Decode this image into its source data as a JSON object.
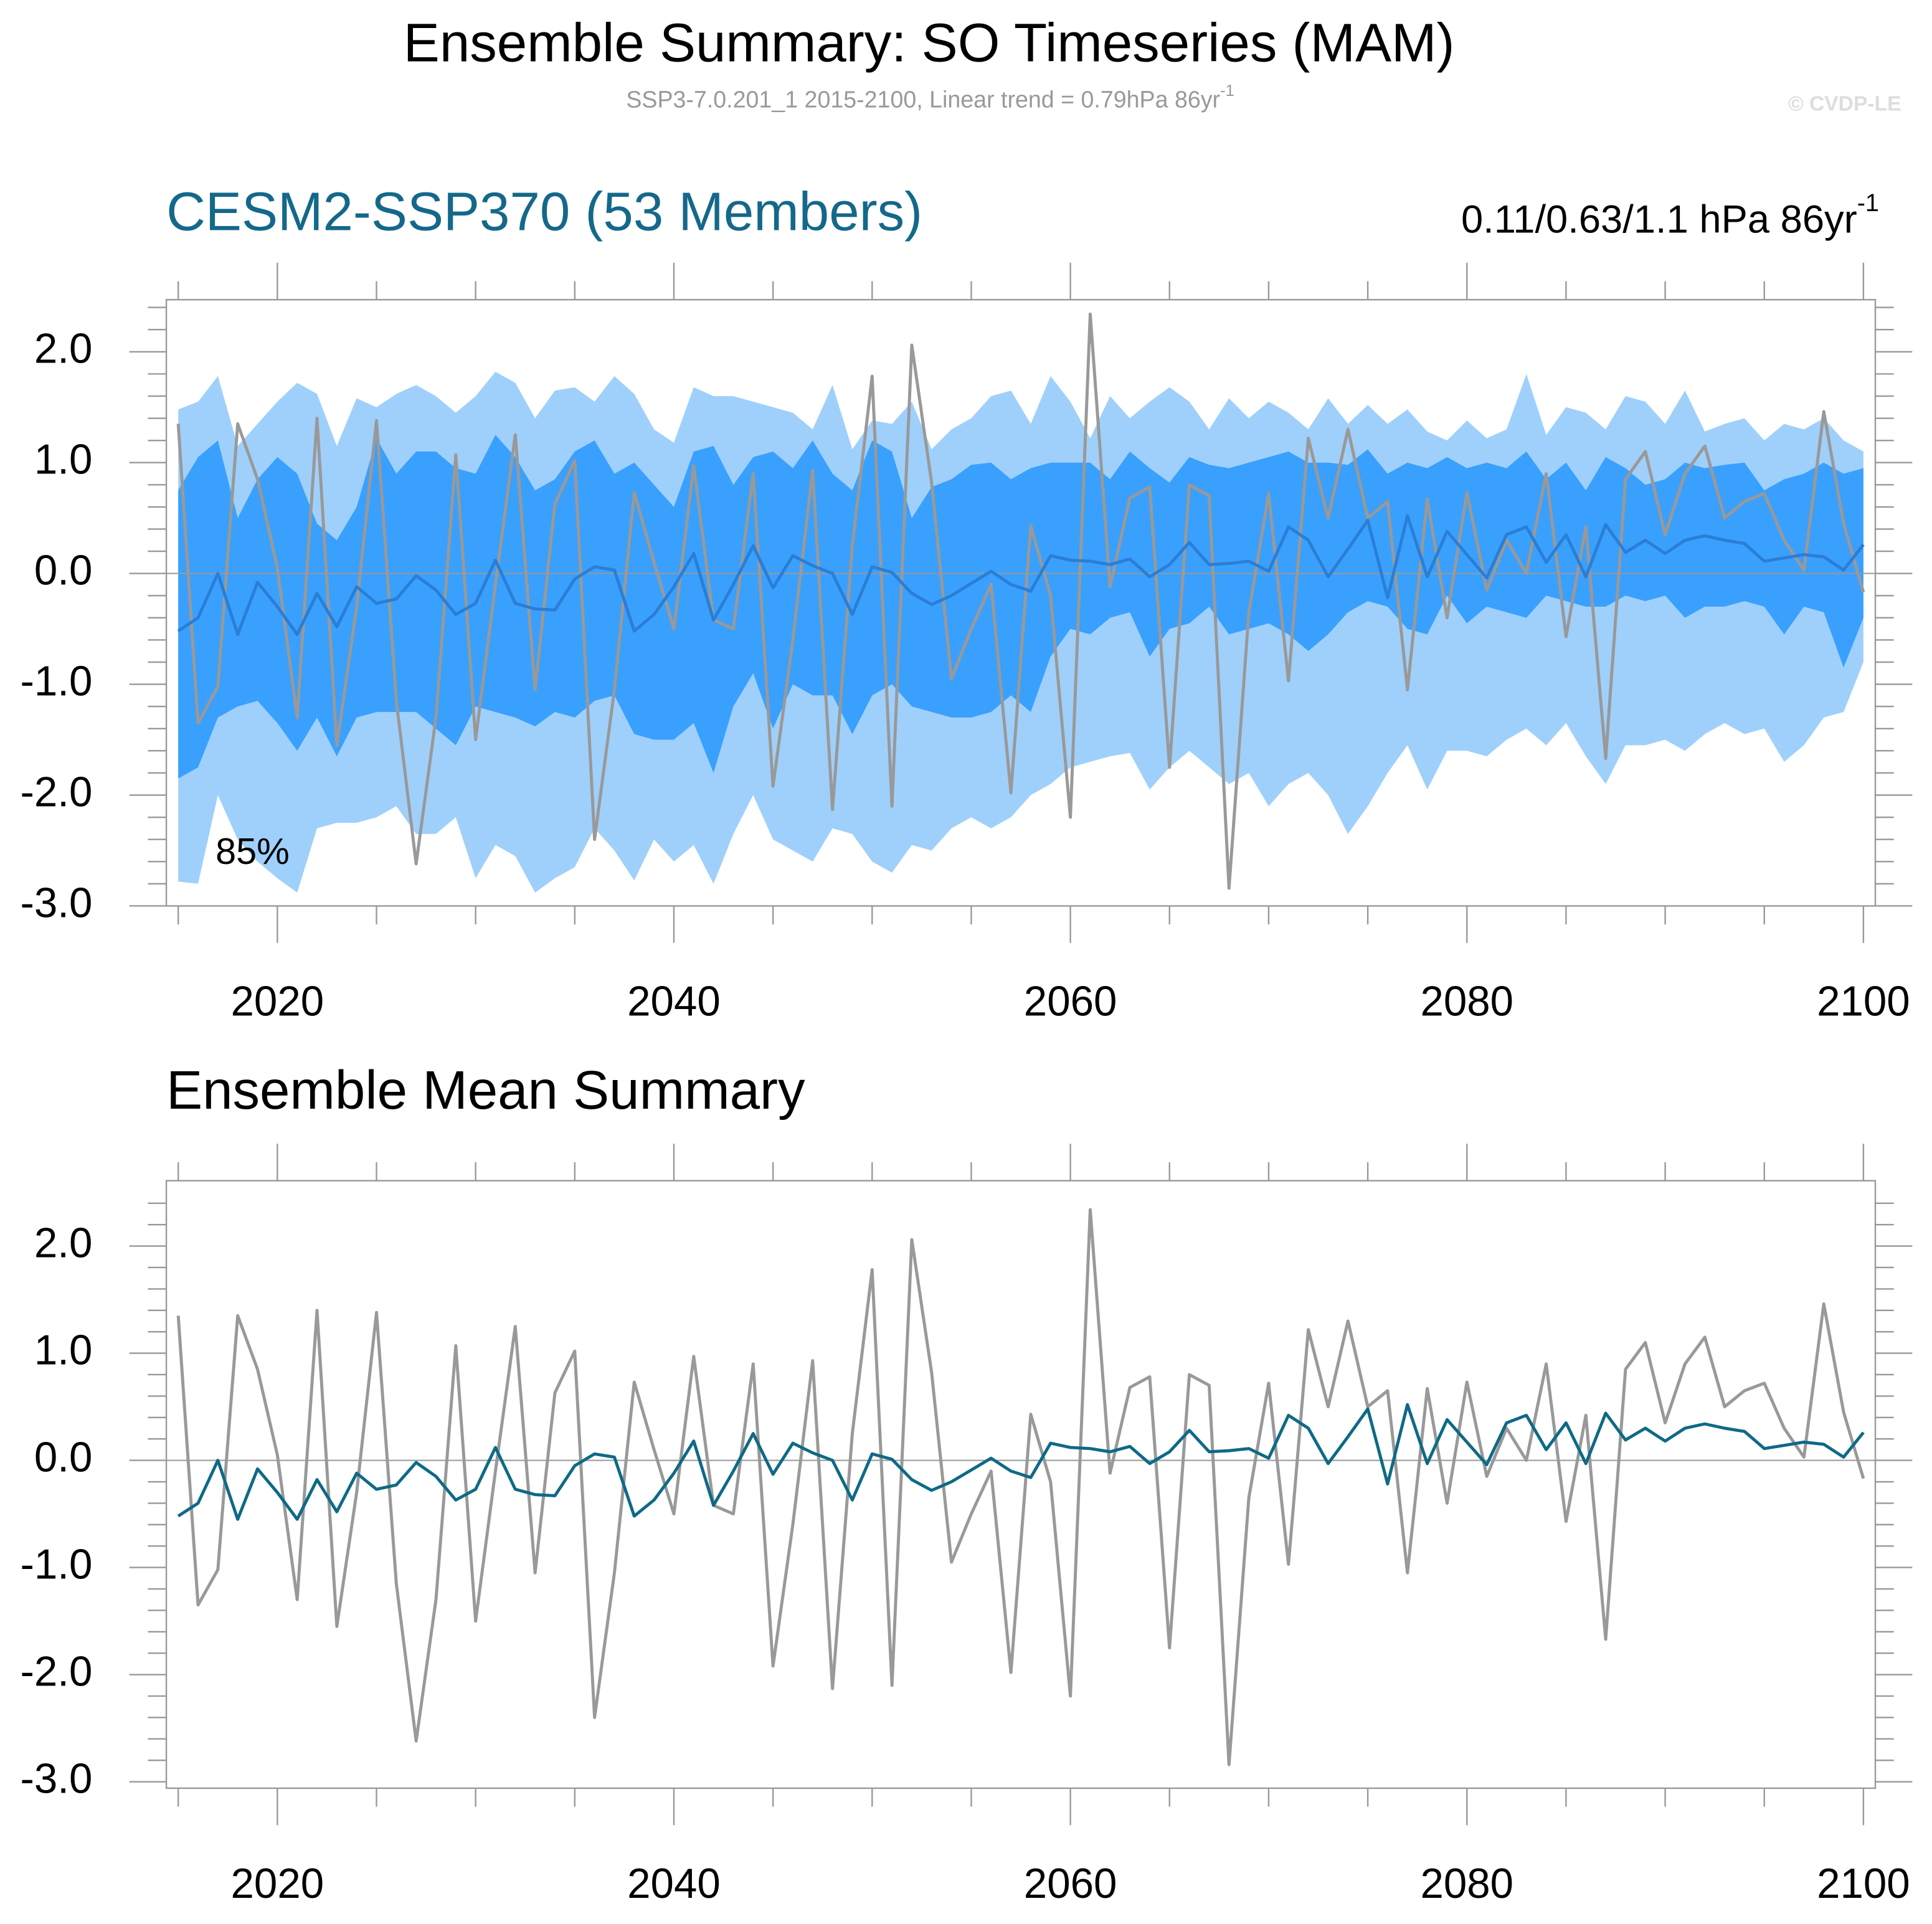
{
  "title": "Ensemble Summary: SO Timeseries (MAM)",
  "subtitle": "SSP3-7.0.201_1 2015-2100, Linear trend = 0.79hPa 86yr",
  "subtitle_sup": "-1",
  "copyright": "© CVDP-LE",
  "chart_data": [
    {
      "type": "band-line",
      "title": "CESM2-SSP370 (53 Members)",
      "title_color": "#14688a",
      "right_label": "0.11/0.63/1.1 hPa 86yr",
      "right_label_sup": "-1",
      "annotation": "85%",
      "x": [
        2015,
        2016,
        2017,
        2018,
        2019,
        2020,
        2021,
        2022,
        2023,
        2024,
        2025,
        2026,
        2027,
        2028,
        2029,
        2030,
        2031,
        2032,
        2033,
        2034,
        2035,
        2036,
        2037,
        2038,
        2039,
        2040,
        2041,
        2042,
        2043,
        2044,
        2045,
        2046,
        2047,
        2048,
        2049,
        2050,
        2051,
        2052,
        2053,
        2054,
        2055,
        2056,
        2057,
        2058,
        2059,
        2060,
        2061,
        2062,
        2063,
        2064,
        2065,
        2066,
        2067,
        2068,
        2069,
        2070,
        2071,
        2072,
        2073,
        2074,
        2075,
        2076,
        2077,
        2078,
        2079,
        2080,
        2081,
        2082,
        2083,
        2084,
        2085,
        2086,
        2087,
        2088,
        2089,
        2090,
        2091,
        2092,
        2093,
        2094,
        2095,
        2096,
        2097,
        2098,
        2099,
        2100
      ],
      "bands": [
        {
          "color": "#9fd0fb",
          "upper": [
            1.48,
            1.55,
            1.78,
            1.15,
            1.35,
            1.55,
            1.72,
            1.62,
            1.15,
            1.58,
            1.5,
            1.62,
            1.7,
            1.6,
            1.45,
            1.6,
            1.82,
            1.72,
            1.4,
            1.65,
            1.68,
            1.55,
            1.78,
            1.62,
            1.3,
            1.18,
            1.68,
            1.6,
            1.6,
            1.55,
            1.5,
            1.45,
            1.3,
            1.7,
            1.12,
            1.38,
            1.35,
            1.55,
            1.12,
            1.3,
            1.4,
            1.6,
            1.65,
            1.35,
            1.78,
            1.55,
            1.22,
            1.6,
            1.4,
            1.55,
            1.68,
            1.55,
            1.3,
            1.58,
            1.4,
            1.55,
            1.45,
            1.3,
            1.58,
            1.35,
            1.52,
            1.35,
            1.48,
            1.28,
            1.2,
            1.38,
            1.22,
            1.3,
            1.8,
            1.25,
            1.5,
            1.45,
            1.3,
            1.6,
            1.55,
            1.35,
            1.65,
            1.28,
            1.35,
            1.4,
            1.2,
            1.35,
            1.3,
            1.4,
            1.2,
            1.1
          ],
          "lower": [
            -2.78,
            -2.8,
            -2.0,
            -2.4,
            -2.6,
            -2.75,
            -2.88,
            -2.3,
            -2.25,
            -2.25,
            -2.2,
            -2.1,
            -2.35,
            -2.35,
            -2.2,
            -2.75,
            -2.45,
            -2.55,
            -2.88,
            -2.75,
            -2.65,
            -2.3,
            -2.5,
            -2.77,
            -2.4,
            -2.6,
            -2.45,
            -2.8,
            -2.35,
            -2.0,
            -2.4,
            -2.5,
            -2.6,
            -2.3,
            -2.35,
            -2.6,
            -2.7,
            -2.45,
            -2.5,
            -2.3,
            -2.2,
            -2.3,
            -2.2,
            -2.0,
            -1.9,
            -1.75,
            -1.7,
            -1.65,
            -1.62,
            -1.95,
            -1.75,
            -1.6,
            -1.75,
            -1.9,
            -1.8,
            -2.1,
            -1.9,
            -1.8,
            -2.0,
            -2.35,
            -2.1,
            -1.8,
            -1.55,
            -1.95,
            -1.6,
            -1.6,
            -1.65,
            -1.5,
            -1.4,
            -1.55,
            -1.35,
            -1.65,
            -1.9,
            -1.55,
            -1.55,
            -1.5,
            -1.6,
            -1.45,
            -1.35,
            -1.45,
            -1.4,
            -1.7,
            -1.55,
            -1.3,
            -1.25,
            -0.8
          ]
        },
        {
          "color": "#3aa0fd",
          "upper": [
            0.75,
            1.05,
            1.2,
            0.5,
            0.85,
            1.05,
            0.9,
            0.45,
            0.3,
            0.6,
            1.22,
            0.9,
            1.1,
            1.1,
            0.95,
            0.9,
            1.25,
            1.05,
            0.75,
            0.85,
            1.1,
            1.2,
            0.9,
            1.0,
            0.8,
            0.6,
            1.1,
            1.15,
            0.8,
            1.05,
            1.1,
            0.95,
            1.2,
            0.9,
            0.75,
            1.2,
            1.1,
            0.5,
            0.78,
            0.85,
            0.98,
            1.0,
            0.85,
            0.95,
            1.0,
            1.0,
            1.0,
            0.85,
            1.1,
            0.95,
            0.82,
            1.05,
            0.98,
            0.95,
            1.0,
            1.05,
            1.1,
            1.0,
            1.0,
            0.98,
            1.12,
            0.9,
            1.0,
            0.95,
            1.05,
            0.95,
            1.0,
            0.95,
            1.1,
            0.85,
            1.0,
            0.75,
            1.05,
            0.95,
            0.8,
            0.85,
            1.0,
            0.95,
            0.98,
            1.0,
            0.75,
            0.85,
            0.9,
            1.0,
            0.9,
            0.95
          ],
          "lower": [
            -1.85,
            -1.75,
            -1.3,
            -1.2,
            -1.15,
            -1.35,
            -1.6,
            -1.3,
            -1.65,
            -1.3,
            -1.25,
            -1.25,
            -1.25,
            -1.4,
            -1.55,
            -1.2,
            -1.25,
            -1.3,
            -1.38,
            -1.25,
            -1.3,
            -1.15,
            -1.1,
            -1.45,
            -1.5,
            -1.5,
            -1.35,
            -1.8,
            -1.2,
            -0.9,
            -1.4,
            -1.0,
            -1.1,
            -1.1,
            -1.45,
            -1.1,
            -1.0,
            -1.2,
            -1.25,
            -1.3,
            -1.3,
            -1.25,
            -1.1,
            -1.25,
            -0.75,
            -0.5,
            -0.55,
            -0.4,
            -0.35,
            -0.75,
            -0.5,
            -0.45,
            -0.3,
            -0.55,
            -0.5,
            -0.45,
            -0.55,
            -0.7,
            -0.55,
            -0.35,
            -0.25,
            -0.3,
            -0.5,
            -0.55,
            -0.2,
            -0.45,
            -0.3,
            -0.35,
            -0.4,
            -0.2,
            -0.25,
            -0.3,
            -0.3,
            -0.2,
            -0.25,
            -0.2,
            -0.4,
            -0.3,
            -0.3,
            -0.25,
            -0.3,
            -0.55,
            -0.3,
            -0.35,
            -0.85,
            -0.4
          ]
        }
      ],
      "series": [
        {
          "color": "#999999",
          "values": [
            1.35,
            -1.35,
            -1.02,
            1.35,
            0.85,
            0.05,
            -1.3,
            1.4,
            -1.55,
            -0.3,
            1.38,
            -1.15,
            -2.62,
            -1.3,
            1.07,
            -1.5,
            -0.1,
            1.25,
            -1.05,
            0.63,
            1.02,
            -2.4,
            -1.05,
            0.73,
            0.1,
            -0.5,
            0.97,
            -0.42,
            -0.5,
            0.9,
            -1.92,
            -0.6,
            0.93,
            -2.13,
            0.25,
            1.78,
            -2.1,
            2.06,
            0.82,
            -0.95,
            -0.5,
            -0.1,
            -1.98,
            0.43,
            -0.2,
            -2.2,
            2.34,
            -0.12,
            0.68,
            0.78,
            -1.75,
            0.8,
            0.7,
            -2.84,
            -0.35,
            0.72,
            -0.97,
            1.22,
            0.5,
            1.3,
            0.5,
            0.65,
            -1.05,
            0.67,
            -0.4,
            0.73,
            -0.15,
            0.3,
            0.0,
            0.9,
            -0.57,
            0.42,
            -1.67,
            0.85,
            1.1,
            0.35,
            0.9,
            1.15,
            0.5,
            0.65,
            0.72,
            0.3,
            0.03,
            1.46,
            0.45,
            -0.17
          ]
        },
        {
          "color": "#2a7ed6",
          "values": [
            -0.52,
            -0.4,
            0.0,
            -0.55,
            -0.08,
            -0.3,
            -0.55,
            -0.18,
            -0.48,
            -0.12,
            -0.27,
            -0.23,
            -0.02,
            -0.15,
            -0.37,
            -0.27,
            0.12,
            -0.27,
            -0.32,
            -0.33,
            -0.05,
            0.06,
            0.03,
            -0.52,
            -0.37,
            -0.12,
            0.18,
            -0.42,
            -0.1,
            0.25,
            -0.13,
            0.16,
            0.07,
            0.0,
            -0.37,
            0.06,
            0.01,
            -0.18,
            -0.28,
            -0.2,
            -0.09,
            0.02,
            -0.1,
            -0.16,
            0.16,
            0.12,
            0.11,
            0.08,
            0.13,
            -0.03,
            0.08,
            0.28,
            0.08,
            0.09,
            0.11,
            0.02,
            0.42,
            0.3,
            -0.03,
            0.22,
            0.48,
            -0.22,
            0.52,
            -0.03,
            0.38,
            0.17,
            -0.04,
            0.35,
            0.42,
            0.1,
            0.35,
            -0.03,
            0.44,
            0.19,
            0.3,
            0.18,
            0.3,
            0.34,
            0.3,
            0.27,
            0.11,
            0.14,
            0.17,
            0.15,
            0.03,
            0.26
          ]
        }
      ],
      "xlim": [
        2014.4,
        2100.6
      ],
      "xticks": [
        2020,
        2040,
        2060,
        2080,
        2100
      ],
      "xminorticks": [
        2015,
        2025,
        2030,
        2035,
        2045,
        2050,
        2055,
        2065,
        2070,
        2075,
        2085,
        2090,
        2095
      ],
      "ylim": [
        -3.0,
        2.47
      ],
      "yticks": [
        {
          "value": -3,
          "label": "-3.0"
        },
        {
          "value": -2,
          "label": "-2.0"
        },
        {
          "value": -1,
          "label": "-1.0"
        },
        {
          "value": 0,
          "label": "0.0"
        },
        {
          "value": 1,
          "label": "1.0"
        },
        {
          "value": 2,
          "label": "2.0"
        }
      ],
      "yminorticks": [
        -2.8,
        -2.6,
        -2.4,
        -2.2,
        -1.8,
        -1.6,
        -1.4,
        -1.2,
        -0.8,
        -0.6,
        -0.4,
        -0.2,
        0.2,
        0.4,
        0.6,
        0.8,
        1.2,
        1.4,
        1.6,
        1.8,
        2.2,
        2.4
      ],
      "zero_line": true
    },
    {
      "type": "line",
      "title": "Ensemble Mean Summary",
      "title_color": "#000000",
      "x": [
        2015,
        2016,
        2017,
        2018,
        2019,
        2020,
        2021,
        2022,
        2023,
        2024,
        2025,
        2026,
        2027,
        2028,
        2029,
        2030,
        2031,
        2032,
        2033,
        2034,
        2035,
        2036,
        2037,
        2038,
        2039,
        2040,
        2041,
        2042,
        2043,
        2044,
        2045,
        2046,
        2047,
        2048,
        2049,
        2050,
        2051,
        2052,
        2053,
        2054,
        2055,
        2056,
        2057,
        2058,
        2059,
        2060,
        2061,
        2062,
        2063,
        2064,
        2065,
        2066,
        2067,
        2068,
        2069,
        2070,
        2071,
        2072,
        2073,
        2074,
        2075,
        2076,
        2077,
        2078,
        2079,
        2080,
        2081,
        2082,
        2083,
        2084,
        2085,
        2086,
        2087,
        2088,
        2089,
        2090,
        2091,
        2092,
        2093,
        2094,
        2095,
        2096,
        2097,
        2098,
        2099,
        2100
      ],
      "series": [
        {
          "color": "#999999",
          "values": [
            1.35,
            -1.35,
            -1.02,
            1.35,
            0.85,
            0.05,
            -1.3,
            1.4,
            -1.55,
            -0.3,
            1.38,
            -1.15,
            -2.62,
            -1.3,
            1.07,
            -1.5,
            -0.1,
            1.25,
            -1.05,
            0.63,
            1.02,
            -2.4,
            -1.05,
            0.73,
            0.1,
            -0.5,
            0.97,
            -0.42,
            -0.5,
            0.9,
            -1.92,
            -0.6,
            0.93,
            -2.13,
            0.25,
            1.78,
            -2.1,
            2.06,
            0.82,
            -0.95,
            -0.5,
            -0.1,
            -1.98,
            0.43,
            -0.2,
            -2.2,
            2.34,
            -0.12,
            0.68,
            0.78,
            -1.75,
            0.8,
            0.7,
            -2.84,
            -0.35,
            0.72,
            -0.97,
            1.22,
            0.5,
            1.3,
            0.5,
            0.65,
            -1.05,
            0.67,
            -0.4,
            0.73,
            -0.15,
            0.3,
            0.0,
            0.9,
            -0.57,
            0.42,
            -1.67,
            0.85,
            1.1,
            0.35,
            0.9,
            1.15,
            0.5,
            0.65,
            0.72,
            0.3,
            0.03,
            1.46,
            0.45,
            -0.17
          ]
        },
        {
          "color": "#0e6a86",
          "values": [
            -0.52,
            -0.4,
            0.0,
            -0.55,
            -0.08,
            -0.3,
            -0.55,
            -0.18,
            -0.48,
            -0.12,
            -0.27,
            -0.23,
            -0.02,
            -0.15,
            -0.37,
            -0.27,
            0.12,
            -0.27,
            -0.32,
            -0.33,
            -0.05,
            0.06,
            0.03,
            -0.52,
            -0.37,
            -0.12,
            0.18,
            -0.42,
            -0.1,
            0.25,
            -0.13,
            0.16,
            0.07,
            0.0,
            -0.37,
            0.06,
            0.01,
            -0.18,
            -0.28,
            -0.2,
            -0.09,
            0.02,
            -0.1,
            -0.16,
            0.16,
            0.12,
            0.11,
            0.08,
            0.13,
            -0.03,
            0.08,
            0.28,
            0.08,
            0.09,
            0.11,
            0.02,
            0.42,
            0.3,
            -0.03,
            0.22,
            0.48,
            -0.22,
            0.52,
            -0.03,
            0.38,
            0.17,
            -0.04,
            0.35,
            0.42,
            0.1,
            0.35,
            -0.03,
            0.44,
            0.19,
            0.3,
            0.18,
            0.3,
            0.34,
            0.3,
            0.27,
            0.11,
            0.14,
            0.17,
            0.15,
            0.03,
            0.26
          ]
        }
      ],
      "xlim": [
        2014.4,
        2100.6
      ],
      "xticks": [
        2020,
        2040,
        2060,
        2080,
        2100
      ],
      "xminorticks": [
        2015,
        2025,
        2030,
        2035,
        2045,
        2050,
        2055,
        2065,
        2070,
        2075,
        2085,
        2090,
        2095
      ],
      "ylim": [
        -3.06,
        2.61
      ],
      "yticks": [
        {
          "value": -3,
          "label": "-3.0"
        },
        {
          "value": -2,
          "label": "-2.0"
        },
        {
          "value": -1,
          "label": "-1.0"
        },
        {
          "value": 0,
          "label": "0.0"
        },
        {
          "value": 1,
          "label": "1.0"
        },
        {
          "value": 2,
          "label": "2.0"
        }
      ],
      "yminorticks": [
        -2.8,
        -2.6,
        -2.4,
        -2.2,
        -1.8,
        -1.6,
        -1.4,
        -1.2,
        -0.8,
        -0.6,
        -0.4,
        -0.2,
        0.2,
        0.4,
        0.6,
        0.8,
        1.2,
        1.4,
        1.6,
        1.8,
        2.2,
        2.4
      ],
      "zero_line": true
    }
  ]
}
